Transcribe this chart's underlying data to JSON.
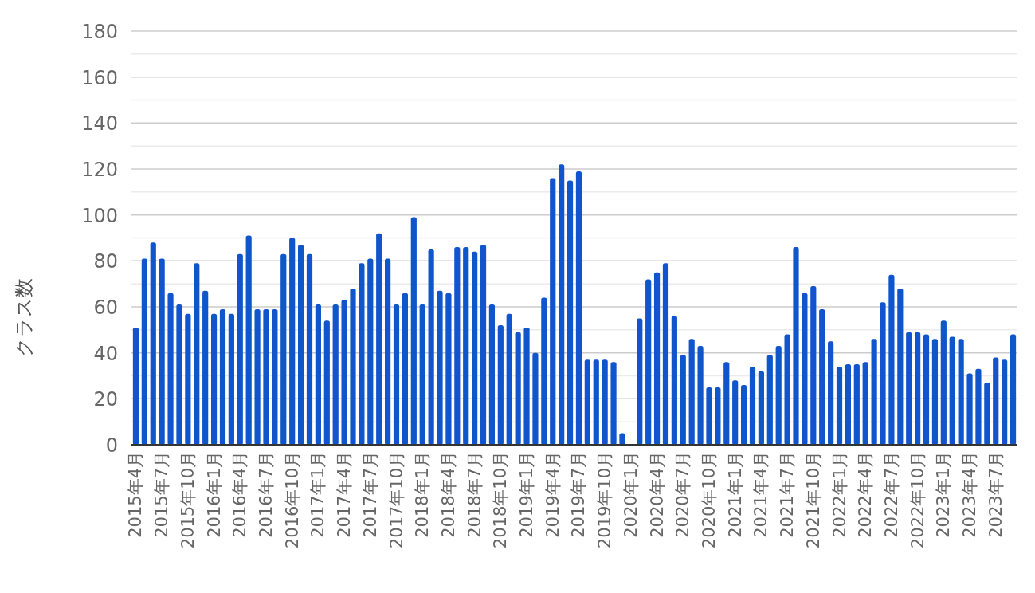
{
  "chart_data": {
    "type": "bar",
    "ylabel": "クラス数",
    "color": "#1155cc",
    "grid": true,
    "ylim": [
      0,
      180
    ],
    "yticks": [
      0,
      {
        "value": 10,
        "label": null
      },
      20,
      {
        "value": 30,
        "label": null
      },
      40,
      {
        "value": 50,
        "label": null
      },
      60,
      {
        "value": 70,
        "label": null
      },
      80,
      {
        "value": 90,
        "label": null
      },
      100,
      {
        "value": 110,
        "label": null
      },
      120,
      {
        "value": 130,
        "label": null
      },
      140,
      {
        "value": 150,
        "label": null
      },
      160,
      {
        "value": 170,
        "label": null
      },
      180
    ],
    "categories": [
      "2015年4月",
      null,
      null,
      "2015年7月",
      null,
      null,
      "2015年10月",
      null,
      null,
      "2016年1月",
      null,
      null,
      "2016年4月",
      null,
      null,
      "2016年7月",
      null,
      null,
      "2016年10月",
      null,
      null,
      "2017年1月",
      null,
      null,
      "2017年4月",
      null,
      null,
      "2017年7月",
      null,
      null,
      "2017年10月",
      null,
      null,
      "2018年1月",
      null,
      null,
      "2018年4月",
      null,
      null,
      "2018年7月",
      null,
      null,
      "2018年10月",
      null,
      null,
      "2019年1月",
      null,
      null,
      "2019年4月",
      null,
      null,
      "2019年7月",
      null,
      null,
      "2019年10月",
      null,
      null,
      "2020年1月",
      null,
      null,
      "2020年4月",
      null,
      null,
      "2020年7月",
      null,
      null,
      "2020年10月",
      null,
      null,
      "2021年1月",
      null,
      null,
      "2021年4月",
      null,
      null,
      "2021年7月",
      null,
      null,
      "2021年10月",
      null,
      null,
      "2022年1月",
      null,
      null,
      "2022年4月",
      null,
      null,
      "2022年7月",
      null,
      null,
      "2022年10月",
      null,
      null,
      "2023年1月",
      null,
      null,
      "2023年4月",
      null,
      null,
      "2023年7月",
      null,
      null
    ],
    "values": [
      51,
      81,
      88,
      81,
      66,
      61,
      57,
      79,
      67,
      57,
      59,
      57,
      83,
      91,
      59,
      59,
      59,
      83,
      90,
      87,
      83,
      61,
      54,
      61,
      63,
      68,
      79,
      81,
      92,
      81,
      61,
      66,
      99,
      61,
      85,
      67,
      66,
      86,
      86,
      84,
      87,
      61,
      52,
      57,
      49,
      51,
      40,
      64,
      116,
      122,
      115,
      119,
      37,
      37,
      37,
      36,
      5,
      null,
      55,
      72,
      75,
      79,
      56,
      39,
      46,
      43,
      25,
      25,
      36,
      28,
      26,
      34,
      32,
      39,
      43,
      48,
      86,
      66,
      69,
      59,
      45,
      34,
      35,
      35,
      36,
      46,
      62,
      74,
      68,
      49,
      49,
      48,
      46,
      54,
      47,
      46,
      31,
      33,
      27,
      38,
      37,
      48
    ]
  }
}
